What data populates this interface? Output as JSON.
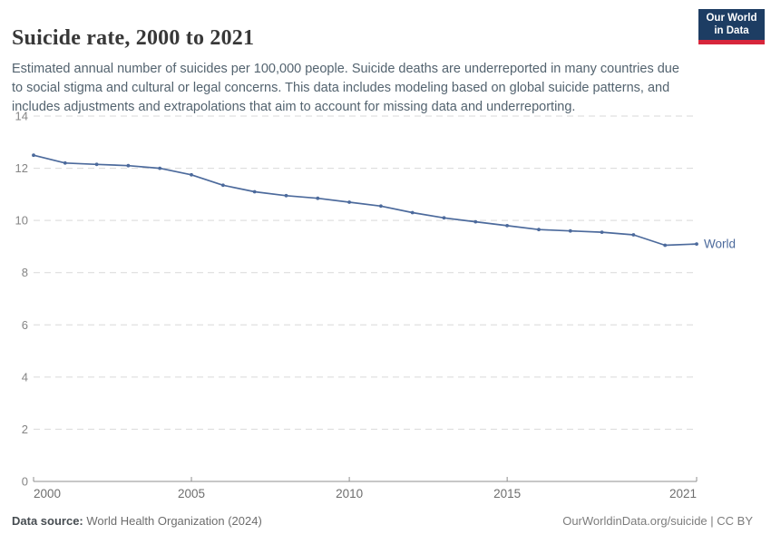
{
  "header": {
    "title": "Suicide rate, 2000 to 2021",
    "logo": {
      "line1": "Our World",
      "line2": "in Data"
    }
  },
  "subtitle": "Estimated annual number of suicides per 100,000 people. Suicide deaths are underreported in many countries due to social stigma and cultural or legal concerns. This data includes modeling based on global suicide patterns, and includes adjustments and extrapolations that aim to account for missing data and underreporting.",
  "footer": {
    "source_label": "Data source:",
    "source_value": "World Health Organization (2024)",
    "credit": "OurWorldinData.org/suicide | CC BY"
  },
  "colors": {
    "line": "#4c6a9c",
    "series_label": "#4c6a9c",
    "grid": "#d9d9d9",
    "axis": "#8f8f8f",
    "y_tick_label": "#858585",
    "x_tick_label": "#6e6e6e",
    "logo_bg": "#1d3d63",
    "logo_stripe": "#d7263b",
    "title_text": "#383838",
    "subtitle_text": "#53636f"
  },
  "chart_data": {
    "type": "line",
    "title": "Suicide rate, 2000 to 2021",
    "xlabel": "",
    "ylabel": "",
    "xlim": [
      2000,
      2021
    ],
    "ylim": [
      0,
      14
    ],
    "x_ticks": [
      2000,
      2005,
      2010,
      2015,
      2021
    ],
    "y_ticks": [
      0,
      2,
      4,
      6,
      8,
      10,
      12,
      14
    ],
    "grid": "horizontal-dashed",
    "legend": "end-of-line-label",
    "series": [
      {
        "name": "World",
        "color": "#4c6a9c",
        "x": [
          2000,
          2001,
          2002,
          2003,
          2004,
          2005,
          2006,
          2007,
          2008,
          2009,
          2010,
          2011,
          2012,
          2013,
          2014,
          2015,
          2016,
          2017,
          2018,
          2019,
          2020,
          2021
        ],
        "values": [
          12.5,
          12.2,
          12.15,
          12.1,
          12.0,
          11.75,
          11.35,
          11.1,
          10.95,
          10.85,
          10.7,
          10.55,
          10.3,
          10.1,
          9.95,
          9.8,
          9.65,
          9.6,
          9.55,
          9.45,
          9.05,
          9.1
        ]
      }
    ]
  }
}
